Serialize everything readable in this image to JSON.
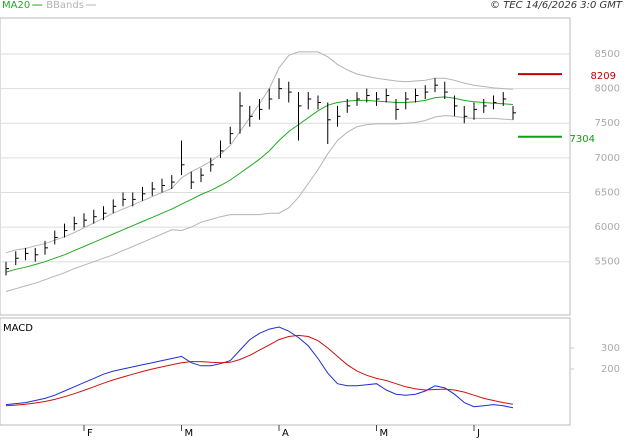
{
  "chart_data": {
    "type": "ohlc",
    "copyright": "© TEC 14/6/2026 3:0 GMT",
    "categories": [
      null,
      null,
      null,
      null,
      null,
      null,
      null,
      null,
      "F",
      null,
      null,
      null,
      null,
      null,
      null,
      null,
      null,
      null,
      "M",
      null,
      null,
      null,
      null,
      null,
      null,
      null,
      null,
      null,
      "A",
      null,
      null,
      null,
      null,
      null,
      null,
      null,
      null,
      null,
      "M",
      null,
      null,
      null,
      null,
      null,
      null,
      null,
      null,
      null,
      "J",
      null,
      null,
      null,
      null
    ],
    "ohlc": {
      "color": "#000000",
      "high": [
        5500,
        5650,
        5700,
        5700,
        5800,
        5950,
        6050,
        6150,
        6200,
        6250,
        6300,
        6400,
        6500,
        6500,
        6580,
        6650,
        6700,
        6750,
        7250,
        6800,
        6850,
        7000,
        7250,
        7450,
        7950,
        7750,
        7850,
        8000,
        8150,
        8100,
        7950,
        7950,
        7900,
        7800,
        7750,
        7850,
        7950,
        8000,
        7950,
        8000,
        7850,
        7950,
        8000,
        8050,
        8150,
        8100,
        7900,
        7750,
        7800,
        7850,
        7900,
        7950,
        7750
      ],
      "low": [
        5300,
        5450,
        5520,
        5500,
        5600,
        5750,
        5850,
        5950,
        6000,
        6050,
        6100,
        6200,
        6300,
        6300,
        6380,
        6450,
        6500,
        6550,
        6750,
        6550,
        6650,
        6800,
        7000,
        7200,
        7350,
        7450,
        7550,
        7700,
        7850,
        7800,
        7250,
        7700,
        7700,
        7200,
        7450,
        7650,
        7750,
        7800,
        7750,
        7800,
        7550,
        7700,
        7800,
        7850,
        7950,
        7850,
        7600,
        7500,
        7550,
        7650,
        7700,
        7750,
        7550
      ],
      "close": [
        5400,
        5550,
        5620,
        5600,
        5700,
        5850,
        5950,
        6050,
        6100,
        6150,
        6200,
        6300,
        6400,
        6400,
        6480,
        6550,
        6600,
        6650,
        6900,
        6650,
        6750,
        6900,
        7100,
        7350,
        7750,
        7600,
        7700,
        7850,
        8000,
        7950,
        7750,
        7850,
        7800,
        7550,
        7600,
        7750,
        7850,
        7900,
        7850,
        7900,
        7700,
        7850,
        7900,
        7950,
        8050,
        7950,
        7750,
        7600,
        7700,
        7750,
        7800,
        7850,
        7650
      ]
    },
    "series": [
      {
        "name": "MA20",
        "color": "#22aa22",
        "values": [
          5350,
          5390,
          5420,
          5460,
          5500,
          5550,
          5600,
          5660,
          5720,
          5780,
          5840,
          5900,
          5960,
          6020,
          6080,
          6140,
          6200,
          6260,
          6330,
          6400,
          6470,
          6530,
          6600,
          6680,
          6780,
          6880,
          6980,
          7100,
          7250,
          7380,
          7480,
          7580,
          7680,
          7760,
          7800,
          7820,
          7830,
          7830,
          7820,
          7810,
          7800,
          7800,
          7810,
          7830,
          7870,
          7880,
          7860,
          7830,
          7810,
          7800,
          7790,
          7780,
          7770
        ]
      },
      {
        "name": "BBands",
        "color": "#b4b4b4",
        "upper": [
          5630,
          5670,
          5690,
          5730,
          5760,
          5810,
          5860,
          5920,
          5990,
          6060,
          6130,
          6200,
          6260,
          6320,
          6380,
          6440,
          6500,
          6560,
          6710,
          6800,
          6870,
          6950,
          7050,
          7180,
          7380,
          7580,
          7780,
          8000,
          8300,
          8480,
          8530,
          8530,
          8530,
          8460,
          8350,
          8270,
          8210,
          8180,
          8150,
          8130,
          8110,
          8100,
          8110,
          8120,
          8150,
          8150,
          8120,
          8080,
          8050,
          8030,
          8010,
          8000,
          7990
        ],
        "lower": [
          5070,
          5110,
          5150,
          5190,
          5240,
          5290,
          5340,
          5400,
          5450,
          5500,
          5550,
          5600,
          5660,
          5720,
          5780,
          5840,
          5900,
          5960,
          5950,
          6000,
          6070,
          6110,
          6150,
          6180,
          6180,
          6180,
          6180,
          6200,
          6200,
          6280,
          6430,
          6630,
          6830,
          7060,
          7250,
          7370,
          7450,
          7480,
          7490,
          7490,
          7490,
          7500,
          7510,
          7540,
          7590,
          7610,
          7600,
          7580,
          7570,
          7570,
          7570,
          7560,
          7550
        ]
      }
    ],
    "annotations": [
      {
        "value": 8209,
        "color": "#c00000"
      },
      {
        "value": 7304,
        "color": "#11a011"
      }
    ],
    "ylim": [
      4730,
      9020
    ],
    "yticks": [
      5500,
      6000,
      6500,
      7000,
      7500,
      8000,
      8500
    ],
    "grid": true,
    "macd": {
      "title": "MACD",
      "lines": [
        {
          "color": "#1f2fd0",
          "values": [
            30,
            35,
            40,
            50,
            60,
            75,
            95,
            115,
            135,
            155,
            175,
            190,
            200,
            210,
            220,
            230,
            240,
            250,
            260,
            230,
            215,
            215,
            225,
            240,
            290,
            340,
            370,
            390,
            400,
            380,
            350,
            310,
            250,
            180,
            130,
            120,
            120,
            125,
            130,
            100,
            80,
            75,
            80,
            95,
            120,
            110,
            80,
            40,
            20,
            25,
            30,
            25,
            15
          ]
        },
        {
          "color": "#d01010",
          "values": [
            25,
            28,
            32,
            38,
            45,
            55,
            68,
            82,
            98,
            115,
            132,
            148,
            162,
            175,
            188,
            200,
            210,
            220,
            230,
            235,
            235,
            232,
            230,
            232,
            245,
            265,
            290,
            315,
            340,
            355,
            360,
            355,
            335,
            300,
            260,
            220,
            190,
            170,
            155,
            145,
            130,
            115,
            105,
            100,
            102,
            104,
            100,
            90,
            75,
            60,
            50,
            40,
            32
          ]
        }
      ],
      "ylim": [
        -67,
        443
      ],
      "yticks": [
        200,
        300
      ]
    }
  }
}
